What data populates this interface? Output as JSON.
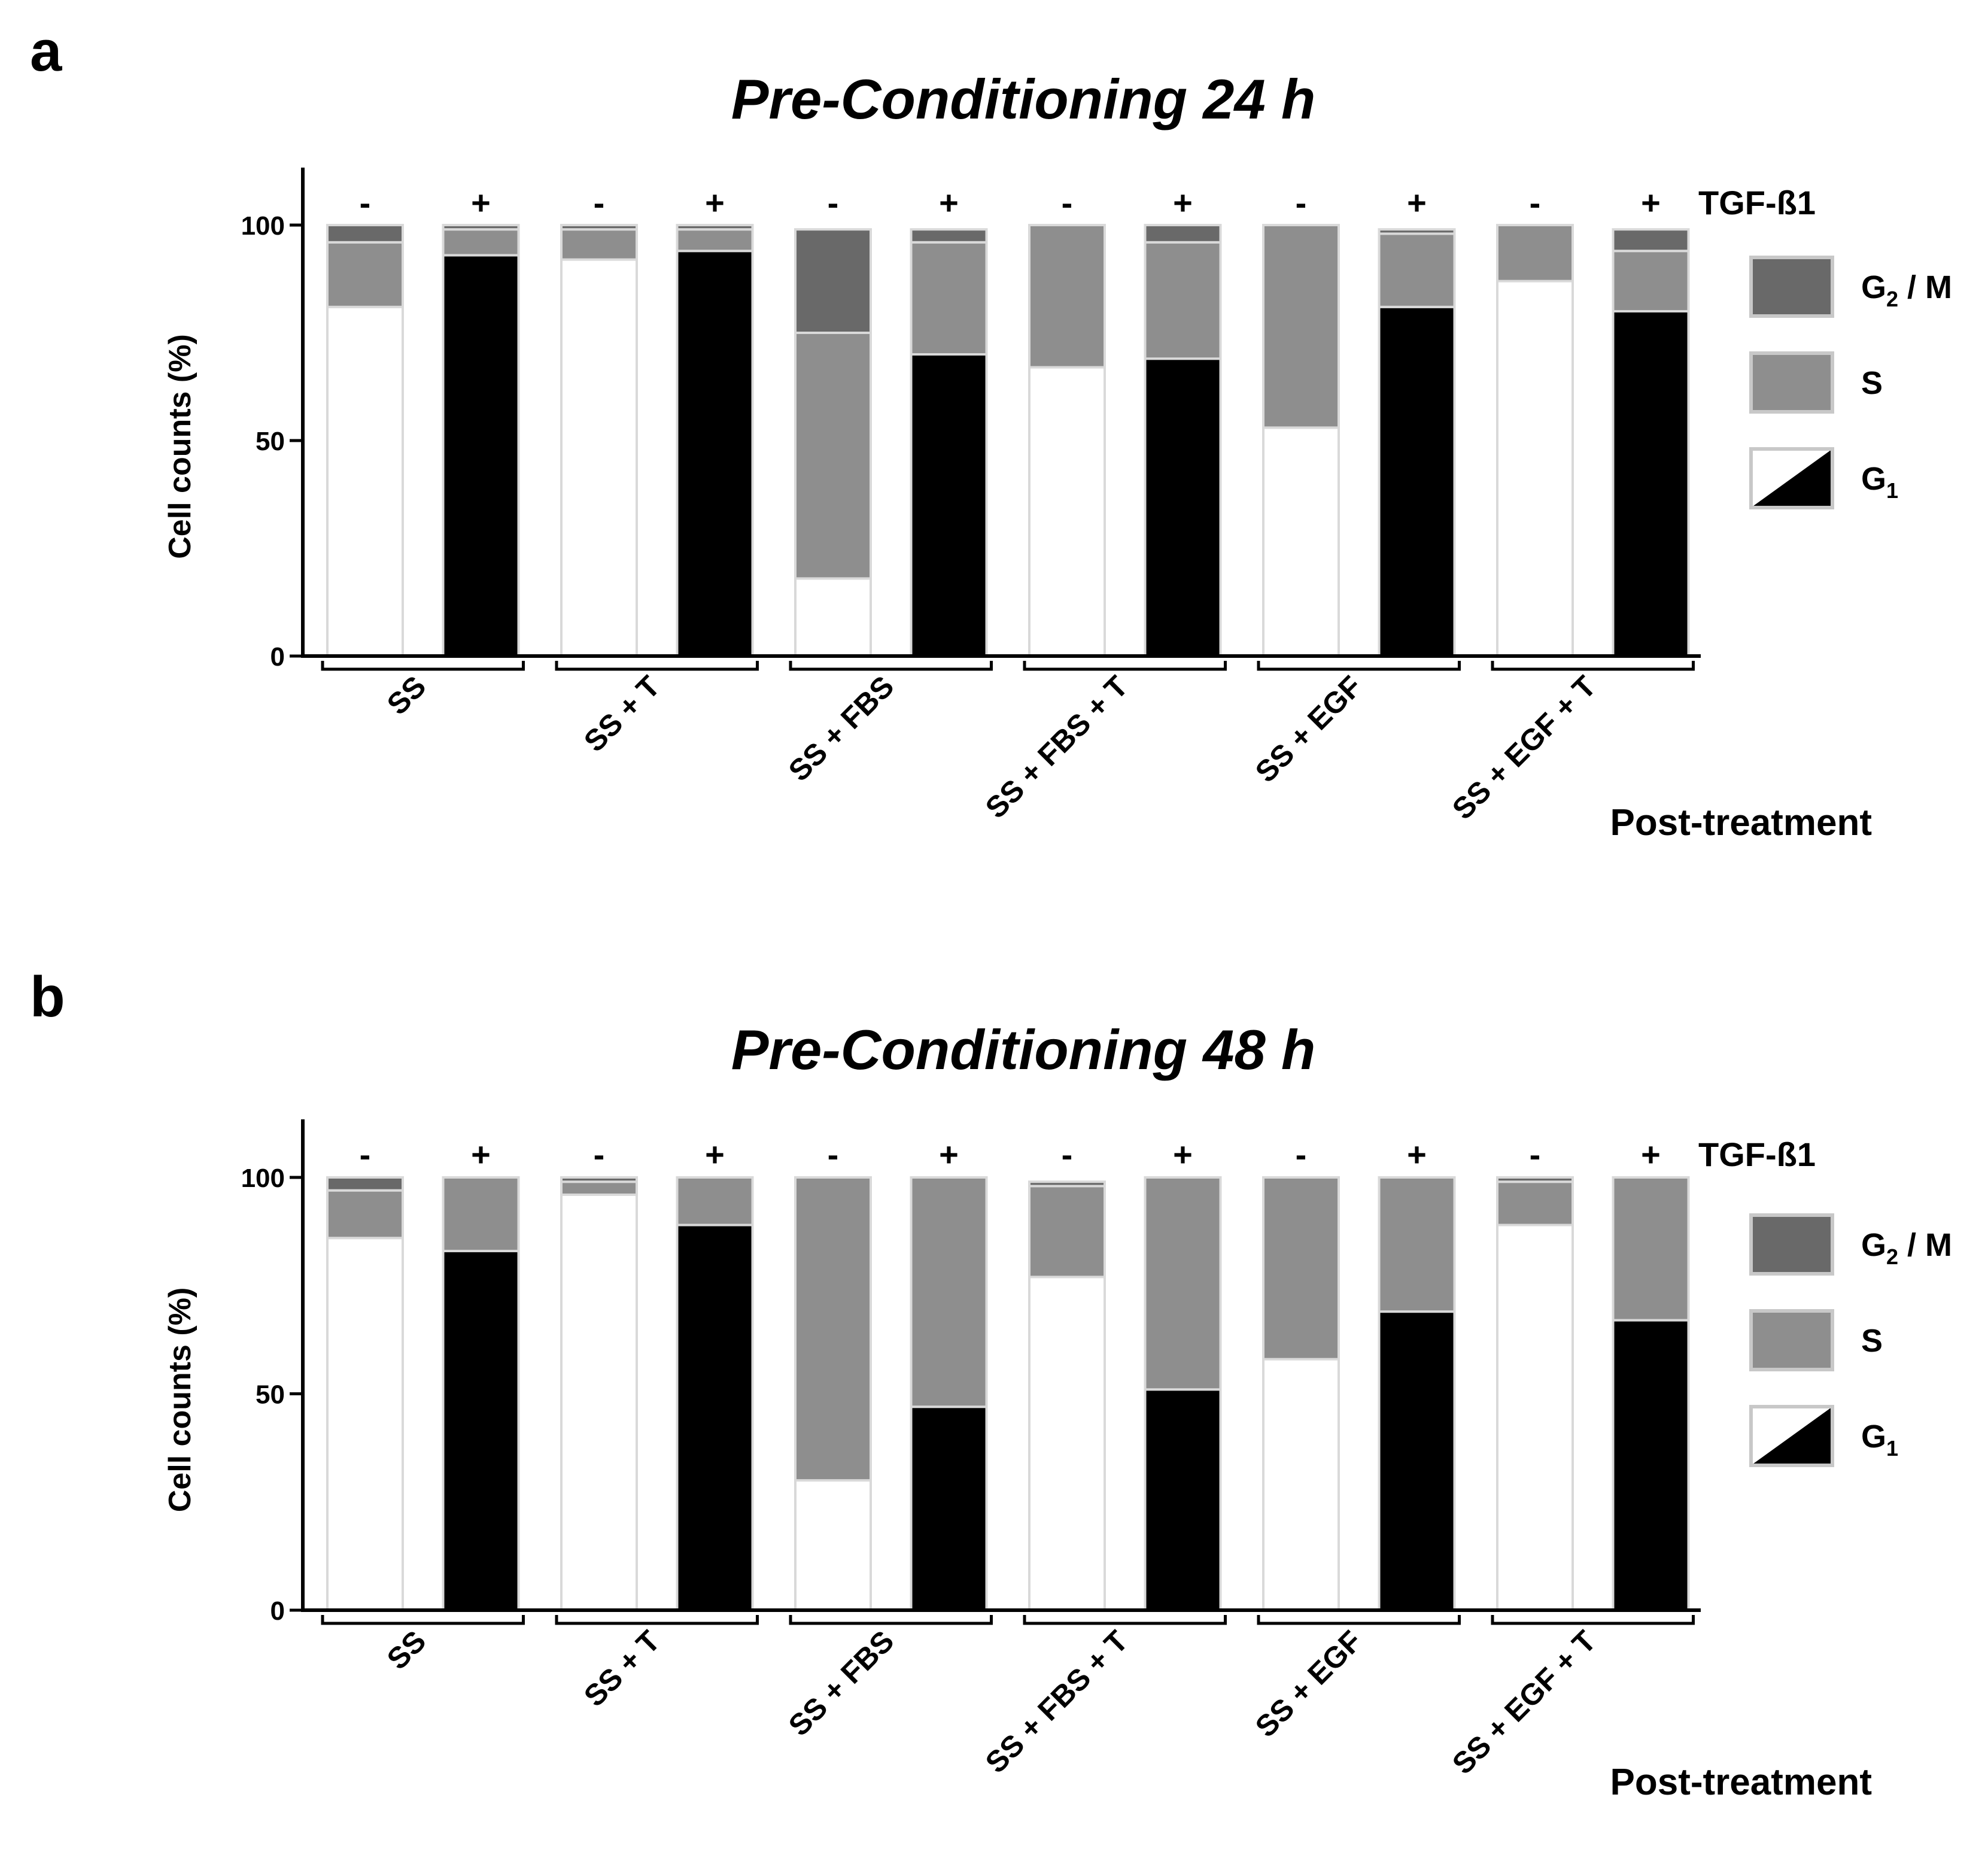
{
  "chart_data": [
    {
      "type": "bar",
      "stacked": true,
      "panel": "a",
      "title": "Pre-Conditioning 24 h",
      "ylabel": "Cell counts (%)",
      "xlabel": "Post-treatment",
      "ylim": [
        0,
        110
      ],
      "yticks": [
        0,
        50,
        100
      ],
      "sign_row_label": "TGF-ß1",
      "groups": [
        "SS",
        "SS + T",
        "SS + FBS",
        "SS + FBS + T",
        "SS + EGF",
        "SS + EGF + T"
      ],
      "signs": [
        "-",
        "+",
        "-",
        "+",
        "-",
        "+",
        "-",
        "+",
        "-",
        "+",
        "-",
        "+"
      ],
      "series": [
        {
          "name": "G1",
          "values": [
            81,
            93,
            92,
            94,
            18,
            70,
            67,
            69,
            53,
            81,
            87,
            80
          ]
        },
        {
          "name": "S",
          "values": [
            15,
            6,
            7,
            5,
            57,
            26,
            33,
            27,
            47,
            17,
            13,
            14
          ]
        },
        {
          "name": "G2 / M",
          "values": [
            4,
            1,
            1,
            1,
            24,
            3,
            0,
            4,
            0,
            1,
            0,
            5
          ]
        }
      ],
      "legend": {
        "position": "right",
        "items": [
          {
            "label": "G",
            "sub": "2",
            "suffix": " / M"
          },
          {
            "label": "S",
            "sub": "",
            "suffix": ""
          },
          {
            "label": "G",
            "sub": "1",
            "suffix": ""
          }
        ]
      }
    },
    {
      "type": "bar",
      "stacked": true,
      "panel": "b",
      "title": "Pre-Conditioning 48 h",
      "ylabel": "Cell counts (%)",
      "xlabel": "Post-treatment",
      "ylim": [
        0,
        110
      ],
      "yticks": [
        0,
        50,
        100
      ],
      "sign_row_label": "TGF-ß1",
      "groups": [
        "SS",
        "SS + T",
        "SS + FBS",
        "SS + FBS + T",
        "SS + EGF",
        "SS + EGF + T"
      ],
      "signs": [
        "-",
        "+",
        "-",
        "+",
        "-",
        "+",
        "-",
        "+",
        "-",
        "+",
        "-",
        "+"
      ],
      "series": [
        {
          "name": "G1",
          "values": [
            86,
            83,
            96,
            89,
            30,
            47,
            77,
            51,
            58,
            69,
            89,
            67
          ]
        },
        {
          "name": "S",
          "values": [
            11,
            17,
            3,
            11,
            70,
            53,
            21,
            49,
            42,
            31,
            10,
            33
          ]
        },
        {
          "name": "G2 / M",
          "values": [
            3,
            0,
            1,
            0,
            0,
            0,
            1,
            0,
            0,
            0,
            1,
            0
          ]
        }
      ],
      "legend": {
        "position": "right",
        "items": [
          {
            "label": "G",
            "sub": "2",
            "suffix": " / M"
          },
          {
            "label": "S",
            "sub": "",
            "suffix": ""
          },
          {
            "label": "G",
            "sub": "1",
            "suffix": ""
          }
        ]
      }
    }
  ],
  "colors": {
    "g1_minus": "#ffffff",
    "g1_plus": "#000000",
    "s_phase": "#8e8e8e",
    "g2m_phase": "#696969",
    "bar_outline": "#d9d9d9",
    "legend_outline": "#c8c8c8"
  }
}
